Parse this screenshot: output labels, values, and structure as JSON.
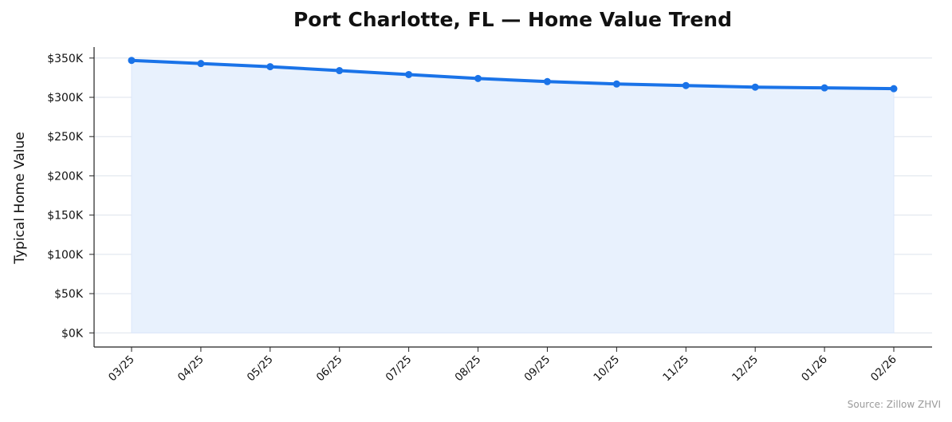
{
  "chart_data": {
    "type": "line",
    "title": "Port Charlotte, FL — Home Value Trend",
    "xlabel": "",
    "ylabel": "Typical Home Value",
    "categories": [
      "03/25",
      "04/25",
      "05/25",
      "06/25",
      "07/25",
      "08/25",
      "09/25",
      "10/25",
      "11/25",
      "12/25",
      "01/26",
      "02/26"
    ],
    "series": [
      {
        "values": [
          347000,
          343000,
          339000,
          334000,
          329000,
          324000,
          320000,
          317000,
          315000,
          313000,
          312000,
          311000
        ]
      }
    ],
    "ylim": [
      -18000,
      364000
    ],
    "yticks": [
      0,
      50000,
      100000,
      150000,
      200000,
      250000,
      300000,
      350000
    ],
    "ytick_labels": [
      "$0K",
      "$50K",
      "$100K",
      "$150K",
      "$200K",
      "$250K",
      "$300K",
      "$350K"
    ],
    "grid": true,
    "area_fill": true,
    "colors": {
      "line": "#1a73e8",
      "fill": "#e8f1fd",
      "grid": "#dde3ec",
      "axis": "#222222"
    }
  },
  "source": "Source: Zillow ZHVI"
}
